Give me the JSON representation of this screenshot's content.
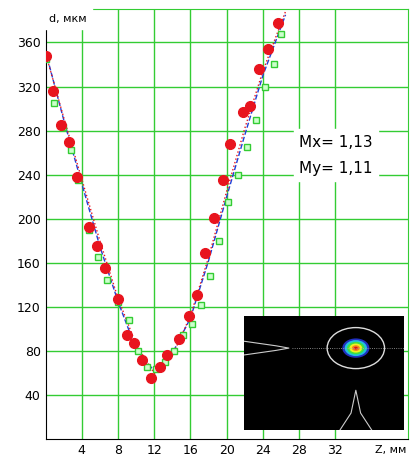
{
  "chart_data": {
    "type": "scatter",
    "x_label": "Z, мм",
    "y_label": "d, мкм",
    "annotations": [
      "Mx= 1,13",
      "My= 1,11"
    ],
    "xlim": [
      0,
      40
    ],
    "xticks": [
      4,
      8,
      12,
      16,
      20,
      24,
      28,
      32
    ],
    "ylim": [
      0,
      390
    ],
    "yticks": [
      40,
      80,
      120,
      160,
      200,
      240,
      280,
      320,
      360
    ],
    "grid": true,
    "series": [
      {
        "type": "scatter",
        "color": "#e8141e",
        "marker": "circle",
        "x": [
          0,
          0.8,
          1.7,
          2.6,
          3.5,
          4.8,
          5.7,
          6.6,
          8,
          9,
          9.8,
          10.7,
          11.7,
          12.6,
          13.4,
          14.7,
          15.8,
          16.7,
          17.6,
          18.6,
          19.6,
          20.4,
          21.8,
          22.6,
          23.6,
          24.6,
          25.7
        ],
        "values": [
          348,
          316,
          285,
          270,
          238,
          193,
          175,
          155,
          127,
          95,
          87,
          72,
          56,
          66,
          77,
          91,
          112,
          131,
          169,
          201,
          235,
          268,
          297,
          302,
          336,
          354,
          378
        ]
      },
      {
        "type": "scatter",
        "color": "#33cc33",
        "marker": "square",
        "x": [
          0,
          0.9,
          1.9,
          2.8,
          3.6,
          4.8,
          5.8,
          6.8,
          8,
          9.2,
          10.2,
          11.2,
          12.2,
          13.2,
          14.2,
          15.2,
          16.2,
          17.2,
          18.2,
          19.2,
          20.2,
          21.2,
          22.2,
          23.2,
          24.2,
          25.2,
          26
        ],
        "values": [
          345,
          305,
          283,
          262,
          235,
          190,
          165,
          145,
          125,
          108,
          80,
          66,
          64,
          70,
          80,
          95,
          105,
          122,
          148,
          180,
          215,
          240,
          265,
          290,
          320,
          340,
          368
        ]
      },
      {
        "type": "line",
        "color": "#1f3fd8",
        "line_style": "dashed",
        "x": [
          0,
          2,
          4,
          6,
          8,
          10,
          12,
          14,
          16,
          18,
          20,
          22,
          24,
          26.5
        ],
        "values": [
          352,
          290,
          232,
          175,
          125,
          82,
          62,
          78,
          110,
          162,
          220,
          276,
          330,
          385
        ]
      },
      {
        "type": "line",
        "color": "#e8141e",
        "line_style": "dotted",
        "x": [
          0,
          2,
          4,
          6,
          8,
          10,
          12,
          14,
          16,
          18,
          20,
          22,
          24,
          26.5
        ],
        "values": [
          350,
          292,
          236,
          180,
          128,
          86,
          60,
          76,
          112,
          165,
          225,
          282,
          334,
          388
        ]
      }
    ]
  }
}
